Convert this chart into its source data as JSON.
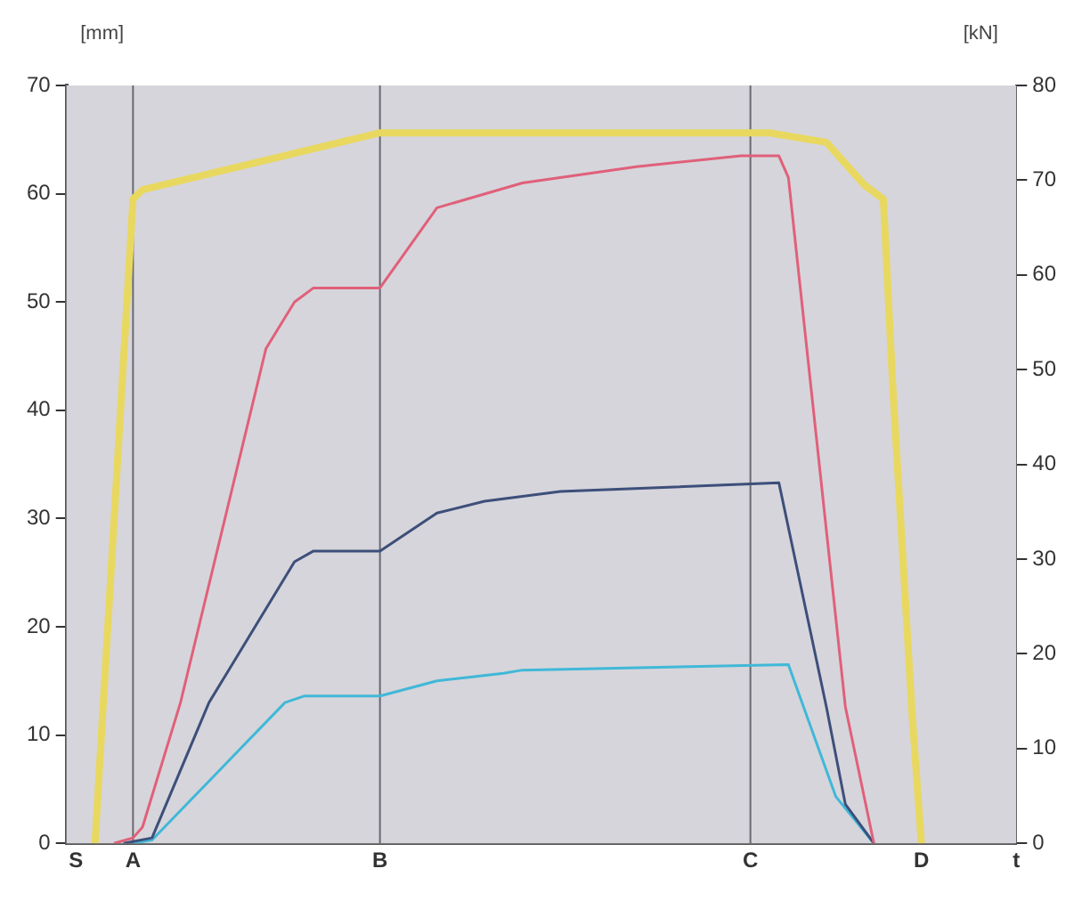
{
  "chart_data": {
    "type": "line",
    "ylabel": "[mm]",
    "y2label": "[kN]",
    "categories": [
      null,
      "S",
      null,
      null,
      null,
      null,
      null,
      "A",
      null,
      null,
      null,
      null,
      null,
      null,
      null,
      null,
      null,
      null,
      null,
      null,
      null,
      null,
      null,
      null,
      null,
      null,
      null,
      null,
      null,
      null,
      null,
      null,
      null,
      "B",
      null,
      null,
      null,
      null,
      null,
      null,
      null,
      null,
      null,
      null,
      null,
      null,
      null,
      null,
      null,
      null,
      null,
      null,
      null,
      null,
      null,
      null,
      null,
      null,
      null,
      null,
      null,
      null,
      null,
      null,
      null,
      null,
      null,
      null,
      null,
      null,
      null,
      null,
      "C",
      null,
      null,
      null,
      null,
      null,
      null,
      null,
      null,
      null,
      null,
      null,
      null,
      null,
      null,
      null,
      null,
      null,
      "D",
      null,
      null,
      null,
      null,
      null,
      null,
      null,
      null,
      null,
      "t"
    ],
    "ylim": [
      0,
      70
    ],
    "yticks": [
      0,
      10,
      20,
      30,
      40,
      50,
      60,
      70
    ],
    "y2lim": [
      0,
      80
    ],
    "y2ticks": [
      0,
      10,
      20,
      30,
      40,
      50,
      60,
      70,
      80
    ],
    "grid": false,
    "legend": false,
    "marker": "none",
    "line_style": "solid",
    "ref_lines": [
      {
        "axis": "x",
        "value": "A",
        "color": "#6a6a72"
      },
      {
        "axis": "x",
        "value": "B",
        "color": "#6a6a72"
      },
      {
        "axis": "x",
        "value": "C",
        "color": "#6a6a72"
      }
    ],
    "series": [
      {
        "color": "#e8d860",
        "axis": "y2",
        "values": [
          null,
          null,
          null,
          0,
          null,
          null,
          null,
          68,
          69,
          null,
          null,
          null,
          null,
          null,
          null,
          null,
          null,
          null,
          null,
          null,
          null,
          null,
          null,
          null,
          null,
          null,
          null,
          null,
          null,
          null,
          null,
          null,
          null,
          75,
          null,
          null,
          null,
          null,
          null,
          null,
          null,
          null,
          null,
          null,
          null,
          null,
          null,
          null,
          null,
          null,
          null,
          null,
          null,
          null,
          null,
          null,
          null,
          null,
          null,
          null,
          null,
          null,
          null,
          null,
          null,
          null,
          null,
          null,
          null,
          null,
          null,
          null,
          null,
          null,
          75,
          null,
          null,
          null,
          null,
          null,
          74,
          null,
          null,
          null,
          69.5,
          null,
          68,
          48,
          null,
          14,
          0,
          null,
          null,
          null,
          null,
          null,
          null,
          null,
          null,
          null,
          null
        ]
      },
      {
        "color": "#e0607a",
        "values": [
          null,
          null,
          null,
          null,
          null,
          0,
          null,
          0.5,
          1.5,
          null,
          null,
          null,
          13,
          null,
          null,
          null,
          null,
          null,
          null,
          null,
          null,
          45.7,
          null,
          null,
          50,
          null,
          51.3,
          null,
          null,
          null,
          null,
          null,
          null,
          51.3,
          null,
          null,
          null,
          null,
          null,
          58.7,
          null,
          null,
          null,
          null,
          null,
          null,
          null,
          null,
          61,
          null,
          null,
          null,
          null,
          null,
          null,
          null,
          null,
          null,
          null,
          null,
          62.5,
          null,
          null,
          null,
          null,
          null,
          null,
          null,
          null,
          null,
          null,
          63.5,
          null,
          null,
          null,
          63.5,
          61.5,
          null,
          null,
          null,
          null,
          null,
          12.6,
          null,
          null,
          0,
          null,
          null,
          null,
          null,
          null,
          null,
          null,
          null,
          null,
          null,
          null,
          null,
          null,
          null,
          null
        ]
      },
      {
        "color": "#3d4f7a",
        "values": [
          null,
          null,
          null,
          null,
          null,
          null,
          0,
          null,
          null,
          0.5,
          null,
          null,
          null,
          null,
          null,
          13,
          null,
          null,
          null,
          null,
          null,
          null,
          null,
          null,
          26,
          null,
          27,
          null,
          null,
          null,
          null,
          null,
          null,
          27,
          null,
          null,
          null,
          null,
          null,
          30.5,
          null,
          null,
          null,
          null,
          31.6,
          null,
          null,
          null,
          null,
          null,
          null,
          null,
          32.5,
          null,
          null,
          null,
          null,
          null,
          null,
          null,
          null,
          null,
          null,
          null,
          null,
          null,
          null,
          null,
          null,
          null,
          null,
          null,
          null,
          null,
          null,
          33.3,
          null,
          null,
          null,
          null,
          12.6,
          null,
          3.6,
          null,
          null,
          0,
          null,
          null,
          null,
          null,
          null,
          null,
          null,
          null,
          null,
          null,
          null,
          null,
          null,
          null,
          null
        ]
      },
      {
        "color": "#40b8d8",
        "values": [
          null,
          null,
          null,
          null,
          null,
          null,
          null,
          0,
          null,
          0.3,
          null,
          null,
          null,
          null,
          null,
          null,
          null,
          null,
          null,
          null,
          null,
          null,
          null,
          13,
          null,
          13.6,
          null,
          null,
          null,
          null,
          null,
          null,
          null,
          13.6,
          null,
          null,
          null,
          null,
          null,
          15,
          null,
          null,
          null,
          null,
          null,
          null,
          15.7,
          null,
          16,
          null,
          null,
          null,
          null,
          null,
          null,
          null,
          null,
          null,
          null,
          null,
          null,
          null,
          null,
          null,
          null,
          null,
          null,
          null,
          null,
          null,
          null,
          null,
          null,
          null,
          null,
          null,
          16.5,
          null,
          null,
          null,
          null,
          4.3,
          null,
          null,
          null,
          0,
          null,
          null,
          null,
          null,
          null,
          null,
          null,
          null,
          null,
          null,
          null,
          null,
          null,
          null,
          null
        ]
      }
    ]
  }
}
